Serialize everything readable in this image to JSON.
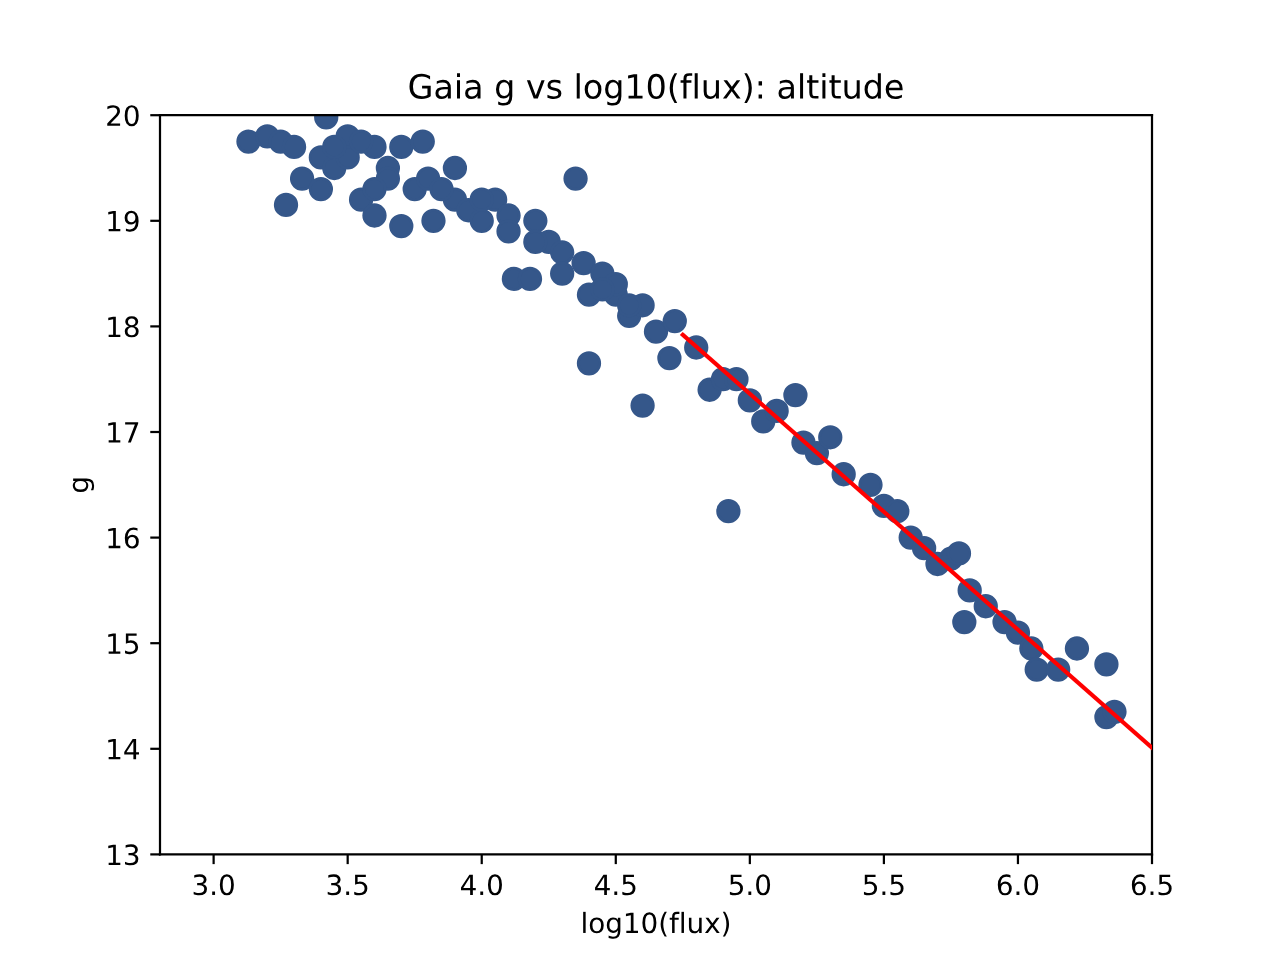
{
  "chart_data": {
    "type": "scatter",
    "title": "Gaia g vs log10(flux): altitude",
    "xlabel": "log10(flux)",
    "ylabel": "g",
    "xlim": [
      2.8,
      6.5
    ],
    "ylim": [
      13,
      20
    ],
    "xticks": [
      {
        "value": 3,
        "label": "3.0"
      },
      3.5,
      {
        "value": 4,
        "label": "4.0"
      },
      4.5,
      {
        "value": 5,
        "label": "5.0"
      },
      5.5,
      {
        "value": 6,
        "label": "6.0"
      },
      6.5
    ],
    "yticks": [
      13,
      14,
      15,
      16,
      17,
      18,
      19,
      20
    ],
    "grid": false,
    "legend": false,
    "series": [
      {
        "marker": "circle",
        "color": "#35578a",
        "x": [
          3.13,
          3.2,
          3.25,
          3.3,
          3.27,
          3.33,
          3.4,
          3.42,
          3.45,
          3.5,
          3.4,
          3.55,
          3.6,
          3.65,
          3.7,
          3.6,
          3.7,
          3.75,
          3.78,
          3.8,
          3.82,
          3.9,
          3.9,
          3.95,
          4.0,
          4.05,
          4.1,
          4.12,
          4.18,
          4.2,
          4.25,
          4.3,
          4.35,
          4.38,
          4.4,
          4.4,
          4.45,
          4.5,
          4.55,
          4.6,
          4.6,
          4.65,
          4.7,
          4.72,
          4.8,
          4.85,
          4.9,
          4.92,
          4.95,
          5.0,
          5.05,
          5.1,
          5.17,
          5.2,
          5.25,
          5.3,
          5.35,
          5.45,
          5.5,
          5.55,
          5.6,
          5.65,
          5.7,
          5.75,
          5.78,
          5.8,
          5.82,
          5.88,
          5.95,
          6.0,
          6.05,
          6.07,
          6.15,
          6.22,
          6.33,
          6.33,
          6.36,
          3.5,
          3.55,
          3.65,
          3.85,
          4.0,
          4.1,
          4.2,
          4.3,
          4.5,
          4.55,
          4.45,
          3.45,
          3.6
        ],
        "values": [
          19.75,
          19.8,
          19.75,
          19.7,
          19.15,
          19.4,
          19.6,
          19.98,
          19.5,
          19.8,
          19.3,
          19.2,
          19.7,
          19.5,
          19.7,
          19.05,
          18.95,
          19.3,
          19.75,
          19.4,
          19.0,
          19.5,
          19.2,
          19.1,
          19.0,
          19.2,
          19.05,
          18.45,
          18.45,
          19.0,
          18.8,
          18.7,
          19.4,
          18.6,
          18.3,
          17.65,
          18.5,
          18.3,
          18.1,
          17.25,
          18.2,
          17.95,
          17.7,
          18.05,
          17.8,
          17.4,
          17.5,
          16.25,
          17.5,
          17.3,
          17.1,
          17.2,
          17.35,
          16.9,
          16.8,
          16.95,
          16.6,
          16.5,
          16.3,
          16.25,
          16.0,
          15.9,
          15.75,
          15.8,
          15.85,
          15.2,
          15.5,
          15.35,
          15.2,
          15.1,
          14.95,
          14.75,
          14.75,
          14.95,
          14.8,
          14.3,
          14.35,
          19.6,
          19.75,
          19.4,
          19.3,
          19.2,
          18.9,
          18.8,
          18.5,
          18.4,
          18.2,
          18.35,
          19.7,
          19.3
        ]
      },
      {
        "type": "line",
        "color": "#ff0000",
        "line_style": "solid",
        "x": [
          4.75,
          6.5
        ],
        "values": [
          17.92,
          14.01
        ]
      }
    ]
  }
}
